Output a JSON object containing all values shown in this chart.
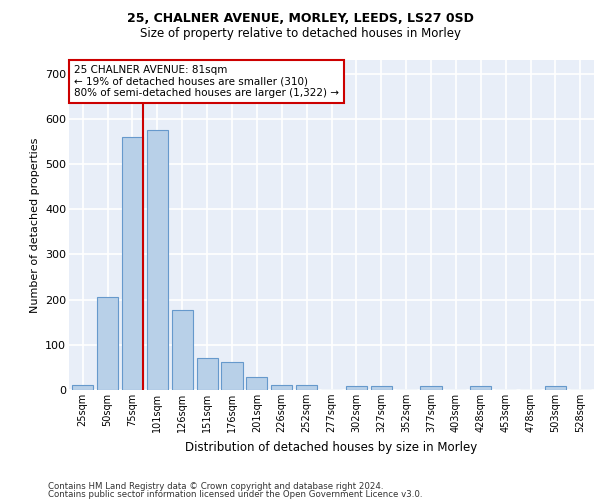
{
  "title1": "25, CHALNER AVENUE, MORLEY, LEEDS, LS27 0SD",
  "title2": "Size of property relative to detached houses in Morley",
  "xlabel": "Distribution of detached houses by size in Morley",
  "ylabel": "Number of detached properties",
  "bar_labels": [
    "25sqm",
    "50sqm",
    "75sqm",
    "101sqm",
    "126sqm",
    "151sqm",
    "176sqm",
    "201sqm",
    "226sqm",
    "252sqm",
    "277sqm",
    "302sqm",
    "327sqm",
    "352sqm",
    "377sqm",
    "403sqm",
    "428sqm",
    "453sqm",
    "478sqm",
    "503sqm",
    "528sqm"
  ],
  "bar_values": [
    10,
    205,
    560,
    575,
    178,
    70,
    63,
    28,
    10,
    10,
    0,
    8,
    8,
    0,
    8,
    0,
    8,
    0,
    0,
    8,
    0
  ],
  "bar_color": "#b8d0e8",
  "bar_edge_color": "#6699cc",
  "bg_color": "#e8eef8",
  "grid_color": "#ffffff",
  "red_line_x": 2.42,
  "annotation_text": "25 CHALNER AVENUE: 81sqm\n← 19% of detached houses are smaller (310)\n80% of semi-detached houses are larger (1,322) →",
  "annotation_box_color": "#ffffff",
  "annotation_box_edge": "#cc0000",
  "ylim": [
    0,
    730
  ],
  "yticks": [
    0,
    100,
    200,
    300,
    400,
    500,
    600,
    700
  ],
  "footer1": "Contains HM Land Registry data © Crown copyright and database right 2024.",
  "footer2": "Contains public sector information licensed under the Open Government Licence v3.0."
}
